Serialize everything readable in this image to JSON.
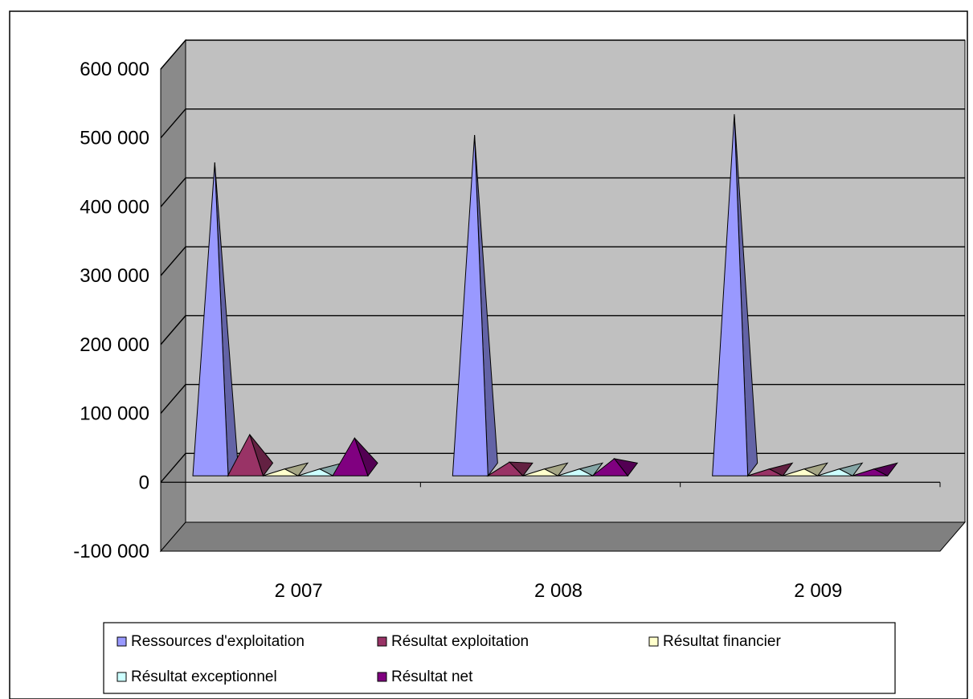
{
  "chart_data": {
    "type": "bar",
    "style": "3d-pyramid",
    "categories": [
      "2 007",
      "2 008",
      "2 009"
    ],
    "series": [
      {
        "name": "Ressources d'exploitation",
        "color": "#9999ff",
        "values": [
          455000,
          495000,
          525000
        ]
      },
      {
        "name": "Résultat exploitation",
        "color": "#993366",
        "values": [
          60000,
          20000,
          10000
        ]
      },
      {
        "name": "Résultat financier",
        "color": "#ffffcc",
        "values": [
          10000,
          10000,
          10000
        ]
      },
      {
        "name": "Résultat exceptionnel",
        "color": "#ccffff",
        "values": [
          10000,
          10000,
          10000
        ]
      },
      {
        "name": "Résultat net",
        "color": "#800080",
        "values": [
          55000,
          25000,
          10000
        ]
      }
    ],
    "ylim": [
      -100000,
      600000
    ],
    "yticks": [
      {
        "value": -100000,
        "label": "-100 000"
      },
      {
        "value": 0,
        "label": "0"
      },
      {
        "value": 100000,
        "label": "100 000"
      },
      {
        "value": 200000,
        "label": "200 000"
      },
      {
        "value": 300000,
        "label": "300 000"
      },
      {
        "value": 400000,
        "label": "400 000"
      },
      {
        "value": 500000,
        "label": "500 000"
      },
      {
        "value": 600000,
        "label": "600 000"
      }
    ],
    "grid": true,
    "legend": "bottom",
    "wall_color": "#c0c0c0",
    "floor_color": "#808080"
  }
}
